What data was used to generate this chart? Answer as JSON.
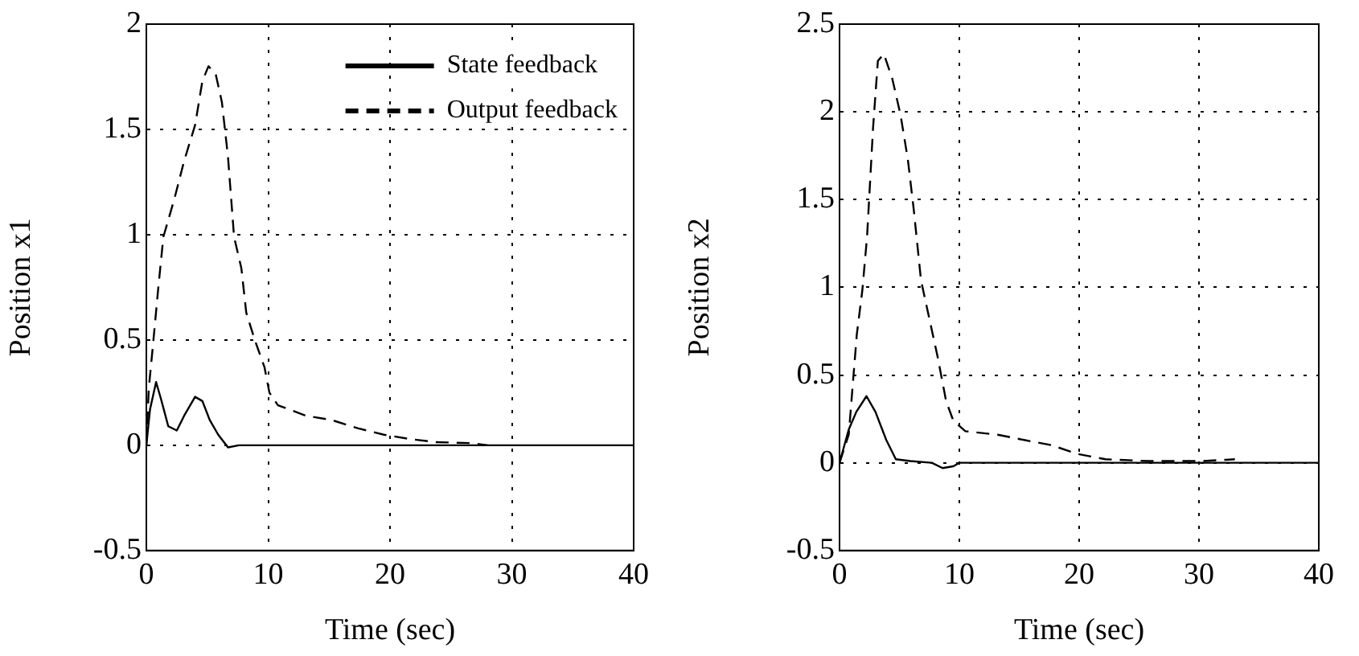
{
  "chart_data": [
    {
      "type": "line",
      "xlabel": "Time (sec)",
      "ylabel": "Position x1",
      "xlim": [
        0,
        40
      ],
      "xticks": [
        0,
        10,
        20,
        30,
        40
      ],
      "ylim": [
        -0.5,
        2
      ],
      "yticks": [
        -0.5,
        0,
        0.5,
        1,
        1.5,
        2
      ],
      "grid": true,
      "legend": "top right",
      "series": [
        {
          "name": "State feedback",
          "color": "#000000",
          "line_style": "solid",
          "x": [
            0,
            0.3,
            0.8,
            1.2,
            1.8,
            2.5,
            3.1,
            4.0,
            4.6,
            5.2,
            5.9,
            6.7,
            7.6,
            8.4,
            40
          ],
          "values": [
            0,
            0.17,
            0.3,
            0.22,
            0.09,
            0.07,
            0.14,
            0.23,
            0.21,
            0.12,
            0.05,
            -0.01,
            0,
            0,
            0
          ]
        },
        {
          "name": "Output feedback",
          "color": "#000000",
          "line_style": "dashed",
          "x": [
            0,
            0.2,
            0.55,
            1.0,
            1.4,
            2.3,
            3.1,
            4.0,
            4.6,
            5.1,
            5.7,
            6.2,
            6.7,
            7.2,
            7.8,
            8.2,
            8.9,
            9.7,
            10.1,
            10.8,
            13.1,
            15.2,
            17.4,
            19.5,
            21.6,
            23.7,
            26.7,
            28
          ],
          "values": [
            0,
            0.27,
            0.48,
            0.76,
            0.99,
            1.17,
            1.35,
            1.52,
            1.73,
            1.8,
            1.76,
            1.63,
            1.37,
            0.99,
            0.84,
            0.63,
            0.5,
            0.37,
            0.25,
            0.19,
            0.14,
            0.12,
            0.08,
            0.05,
            0.03,
            0.015,
            0.01,
            0
          ]
        }
      ]
    },
    {
      "type": "line",
      "xlabel": "Time (sec)",
      "ylabel": "Position x2",
      "xlim": [
        0,
        40
      ],
      "xticks": [
        0,
        10,
        20,
        30,
        40
      ],
      "ylim": [
        -0.5,
        2.5
      ],
      "yticks": [
        -0.5,
        0,
        0.5,
        1,
        1.5,
        2,
        2.5
      ],
      "grid": true,
      "legend": false,
      "series": [
        {
          "color": "#000000",
          "line_style": "solid",
          "x": [
            0,
            0.77,
            1.4,
            2.25,
            3.0,
            3.9,
            4.7,
            5.9,
            7.7,
            8.6,
            9.5,
            10,
            40
          ],
          "values": [
            0,
            0.19,
            0.29,
            0.38,
            0.29,
            0.13,
            0.02,
            0.01,
            0,
            -0.03,
            -0.02,
            0,
            0
          ]
        },
        {
          "color": "#000000",
          "line_style": "dashed",
          "x": [
            0,
            0.77,
            1.44,
            1.9,
            2.3,
            2.8,
            3.2,
            3.7,
            4.4,
            5.1,
            5.7,
            6.2,
            6.8,
            7.5,
            8.2,
            8.9,
            9.5,
            10.5,
            13.2,
            15.4,
            17.7,
            19.9,
            22.2,
            25.8,
            30.3,
            33
          ],
          "values": [
            0,
            0.16,
            0.73,
            0.98,
            1.29,
            1.91,
            2.29,
            2.33,
            2.19,
            1.98,
            1.73,
            1.44,
            1.04,
            0.82,
            0.6,
            0.35,
            0.24,
            0.18,
            0.16,
            0.13,
            0.1,
            0.05,
            0.02,
            0.01,
            0.01,
            0.02
          ]
        }
      ]
    }
  ]
}
